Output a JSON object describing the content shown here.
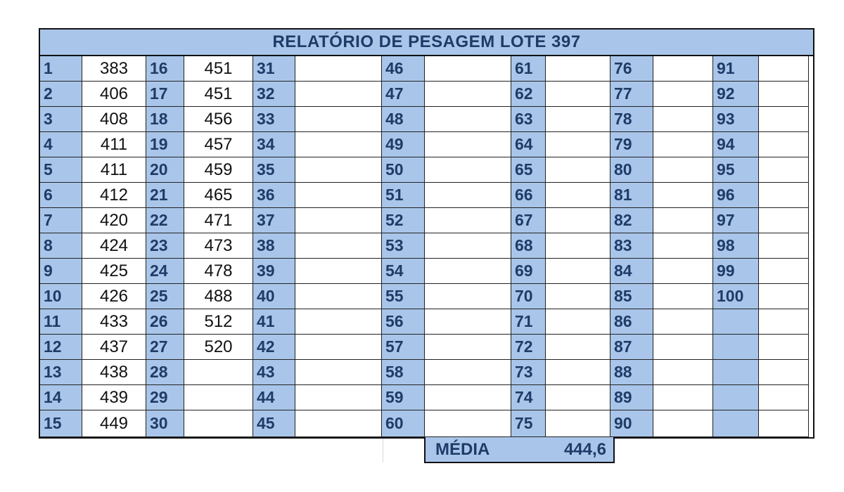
{
  "title": "RELATÓRIO DE PESAGEM LOTE 397",
  "columns": [
    {
      "start": 1,
      "values": [
        "383",
        "406",
        "408",
        "411",
        "411",
        "412",
        "420",
        "424",
        "425",
        "426",
        "433",
        "437",
        "438",
        "439",
        "449"
      ]
    },
    {
      "start": 16,
      "values": [
        "451",
        "451",
        "456",
        "457",
        "459",
        "465",
        "471",
        "473",
        "478",
        "488",
        "512",
        "520",
        "",
        "",
        ""
      ]
    },
    {
      "start": 31,
      "values": [
        "",
        "",
        "",
        "",
        "",
        "",
        "",
        "",
        "",
        "",
        "",
        "",
        "",
        "",
        ""
      ]
    },
    {
      "start": 46,
      "values": [
        "",
        "",
        "",
        "",
        "",
        "",
        "",
        "",
        "",
        "",
        "",
        "",
        "",
        "",
        ""
      ]
    },
    {
      "start": 61,
      "values": [
        "",
        "",
        "",
        "",
        "",
        "",
        "",
        "",
        "",
        "",
        "",
        "",
        "",
        "",
        ""
      ]
    },
    {
      "start": 76,
      "values": [
        "",
        "",
        "",
        "",
        "",
        "",
        "",
        "",
        "",
        "",
        "",
        "",
        "",
        "",
        ""
      ]
    },
    {
      "start": 91,
      "values": [
        "",
        "",
        "",
        "",
        "",
        "",
        "",
        "",
        "",
        "",
        "",
        "",
        "",
        "",
        ""
      ]
    }
  ],
  "summary": {
    "label": "MÉDIA",
    "value": "444,6"
  },
  "colors": {
    "header_blue": "#a9c6ea",
    "text_navy": "#1f3b68"
  }
}
